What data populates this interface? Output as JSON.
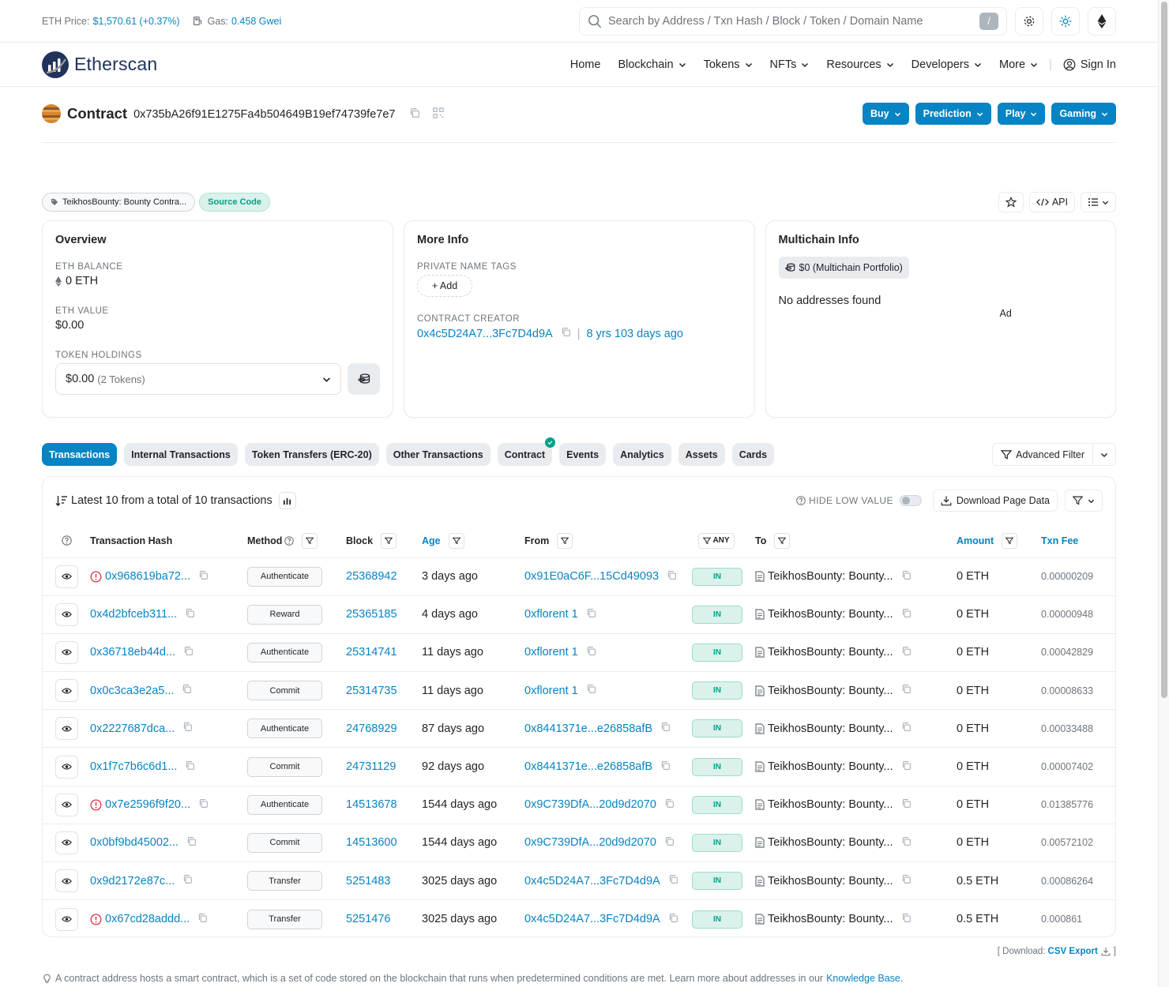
{
  "topbar": {
    "eth_price_label": "ETH Price:",
    "eth_price_value": "$1,570.61 (+0.37%)",
    "gas_label": "Gas:",
    "gas_value": "0.458 Gwei",
    "search_placeholder": "Search by Address / Txn Hash / Block / Token / Domain Name",
    "search_shortcut": "/"
  },
  "nav": {
    "brand": "Etherscan",
    "items": [
      "Home",
      "Blockchain",
      "Tokens",
      "NFTs",
      "Resources",
      "Developers",
      "More"
    ],
    "sign_in": "Sign In"
  },
  "contract": {
    "title": "Contract",
    "address": "0x735bA26f91E1275Fa4b504649B19ef74739fe7e7",
    "buttons": [
      "Buy",
      "Prediction",
      "Play",
      "Gaming"
    ]
  },
  "tags": {
    "name_tag": "TeikhosBounty: Bounty Contra...",
    "source_code": "Source Code",
    "api_label": "API"
  },
  "overview": {
    "title": "Overview",
    "eth_balance_label": "ETH BALANCE",
    "eth_balance": "0 ETH",
    "eth_value_label": "ETH VALUE",
    "eth_value": "$0.00",
    "token_holdings_label": "TOKEN HOLDINGS",
    "token_holdings_value": "$0.00",
    "token_holdings_count": "(2 Tokens)"
  },
  "more_info": {
    "title": "More Info",
    "private_tags_label": "PRIVATE NAME TAGS",
    "add_label": "+ Add",
    "creator_label": "CONTRACT CREATOR",
    "creator_address": "0x4c5D24A7...3Fc7D4d9A",
    "creator_age": "8 yrs 103 days ago"
  },
  "multichain": {
    "title": "Multichain Info",
    "portfolio": "$0 (Multichain Portfolio)",
    "no_addresses": "No addresses found",
    "ad": "Ad"
  },
  "tabs": [
    "Transactions",
    "Internal Transactions",
    "Token Transfers (ERC-20)",
    "Other Transactions",
    "Contract",
    "Events",
    "Analytics",
    "Assets",
    "Cards"
  ],
  "advanced_filter": "Advanced Filter",
  "txns": {
    "summary": "Latest 10 from a total of 10 transactions",
    "hide_low_value": "HIDE LOW VALUE",
    "download_page_data": "Download Page Data",
    "headers": {
      "hash": "Transaction Hash",
      "method": "Method",
      "block": "Block",
      "age": "Age",
      "from": "From",
      "any": "ANY",
      "to": "To",
      "amount": "Amount",
      "fee": "Txn Fee"
    },
    "rows": [
      {
        "hash": "0x968619ba72...",
        "error": true,
        "method": "Authenticate",
        "block": "25368942",
        "age": "3 days ago",
        "from": "0x91E0aC6F...15Cd49093",
        "dir": "IN",
        "to": "TeikhosBounty: Bounty...",
        "amount": "0 ETH",
        "fee": "0.00000209"
      },
      {
        "hash": "0x4d2bfceb311...",
        "error": false,
        "method": "Reward",
        "block": "25365185",
        "age": "4 days ago",
        "from": "0xflorent 1",
        "dir": "IN",
        "to": "TeikhosBounty: Bounty...",
        "amount": "0 ETH",
        "fee": "0.00000948"
      },
      {
        "hash": "0x36718eb44d...",
        "error": false,
        "method": "Authenticate",
        "block": "25314741",
        "age": "11 days ago",
        "from": "0xflorent 1",
        "dir": "IN",
        "to": "TeikhosBounty: Bounty...",
        "amount": "0 ETH",
        "fee": "0.00042829"
      },
      {
        "hash": "0x0c3ca3e2a5...",
        "error": false,
        "method": "Commit",
        "block": "25314735",
        "age": "11 days ago",
        "from": "0xflorent 1",
        "dir": "IN",
        "to": "TeikhosBounty: Bounty...",
        "amount": "0 ETH",
        "fee": "0.00008633"
      },
      {
        "hash": "0x2227687dca...",
        "error": false,
        "method": "Authenticate",
        "block": "24768929",
        "age": "87 days ago",
        "from": "0x8441371e...e26858afB",
        "dir": "IN",
        "to": "TeikhosBounty: Bounty...",
        "amount": "0 ETH",
        "fee": "0.00033488"
      },
      {
        "hash": "0x1f7c7b6c6d1...",
        "error": false,
        "method": "Commit",
        "block": "24731129",
        "age": "92 days ago",
        "from": "0x8441371e...e26858afB",
        "dir": "IN",
        "to": "TeikhosBounty: Bounty...",
        "amount": "0 ETH",
        "fee": "0.00007402"
      },
      {
        "hash": "0x7e2596f9f20...",
        "error": true,
        "method": "Authenticate",
        "block": "14513678",
        "age": "1544 days ago",
        "from": "0x9C739DfA...20d9d2070",
        "dir": "IN",
        "to": "TeikhosBounty: Bounty...",
        "amount": "0 ETH",
        "fee": "0.01385776"
      },
      {
        "hash": "0x0bf9bd45002...",
        "error": false,
        "method": "Commit",
        "block": "14513600",
        "age": "1544 days ago",
        "from": "0x9C739DfA...20d9d2070",
        "dir": "IN",
        "to": "TeikhosBounty: Bounty...",
        "amount": "0 ETH",
        "fee": "0.00572102"
      },
      {
        "hash": "0x9d2172e87c...",
        "error": false,
        "method": "Transfer",
        "block": "5251483",
        "age": "3025 days ago",
        "from": "0x4c5D24A7...3Fc7D4d9A",
        "dir": "IN",
        "to": "TeikhosBounty: Bounty...",
        "amount": "0.5 ETH",
        "fee": "0.00086264"
      },
      {
        "hash": "0x67cd28addd...",
        "error": true,
        "method": "Transfer",
        "block": "5251476",
        "age": "3025 days ago",
        "from": "0x4c5D24A7...3Fc7D4d9A",
        "dir": "IN",
        "to": "TeikhosBounty: Bounty...",
        "amount": "0.5 ETH",
        "fee": "0.000861"
      }
    ]
  },
  "bottom": {
    "download_prefix": "[ Download:",
    "csv_export": "CSV Export",
    "download_suffix": "]",
    "footnote": "A contract address hosts a smart contract, which is a set of code stored on the blockchain that runs when predetermined conditions are met. Learn more about addresses in our",
    "knowledge_base": "Knowledge Base."
  },
  "colors": {
    "accent": "#0784c3",
    "success": "#00a186",
    "error": "#dc3545",
    "brand_dark": "#21325b"
  }
}
